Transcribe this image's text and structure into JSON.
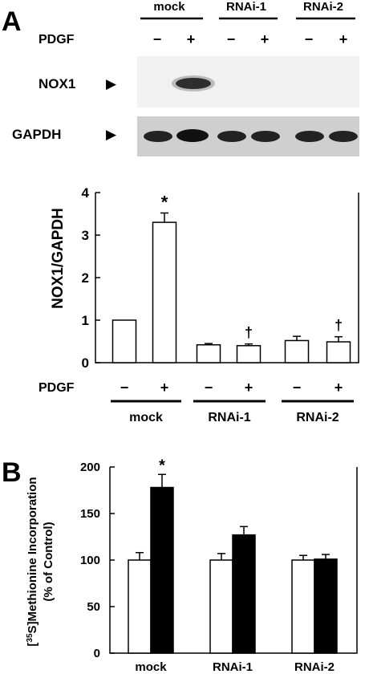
{
  "panel_a": {
    "letter": "A",
    "blot": {
      "groups": [
        "mock",
        "RNAi-1",
        "RNAi-2"
      ],
      "pdgf_label": "PDGF",
      "pdgf_signs": [
        "−",
        "+",
        "−",
        "+",
        "−",
        "+"
      ],
      "rows": [
        {
          "label": "NOX1",
          "arrow": "▶"
        },
        {
          "label": "GAPDH",
          "arrow": "▶"
        }
      ]
    }
  },
  "panel_b": {
    "letter": "B"
  },
  "chart_data": [
    {
      "type": "bar",
      "ylabel": "NOX1/GAPDH",
      "ylim": [
        0,
        4
      ],
      "yticks": [
        0,
        1,
        2,
        3,
        4
      ],
      "x_row_label": "PDGF",
      "x_signs": [
        "−",
        "+",
        "−",
        "+",
        "−",
        "+"
      ],
      "groups": [
        "mock",
        "RNAi-1",
        "RNAi-2"
      ],
      "values": [
        1.0,
        3.3,
        0.42,
        0.4,
        0.52,
        0.49
      ],
      "errors": [
        0,
        0.22,
        0.03,
        0.04,
        0.1,
        0.12
      ],
      "colors": [
        "#ffffff",
        "#ffffff",
        "#ffffff",
        "#ffffff",
        "#ffffff",
        "#ffffff"
      ],
      "annotations": [
        "",
        "*",
        "",
        "†",
        "",
        "†"
      ]
    },
    {
      "type": "bar",
      "ylabel": "[35S]Methionine Incorporation",
      "ylabel_sup": "35",
      "ylabel_pre": "[",
      "ylabel_post": "S]Methionine Incorporation",
      "ylabel2": "(% of Control)",
      "ylim": [
        0,
        200
      ],
      "yticks": [
        0,
        50,
        100,
        150,
        200
      ],
      "categories": [
        "mock",
        "RNAi-1",
        "RNAi-2"
      ],
      "series": [
        {
          "values": [
            100,
            100,
            100
          ],
          "errors": [
            8,
            7,
            5
          ],
          "color": "#ffffff"
        },
        {
          "values": [
            178,
            127,
            101
          ],
          "errors": [
            14,
            9,
            5
          ],
          "color": "#000000"
        }
      ],
      "annotations": [
        "*",
        "",
        ""
      ]
    }
  ]
}
